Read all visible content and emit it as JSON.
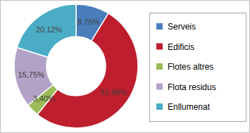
{
  "chart_data": {
    "type": "donut",
    "categories": [
      "Serveis",
      "Edificis",
      "Flotes altres",
      "Flota residus",
      "Enllumenat"
    ],
    "values": [
      8.75,
      51.98,
      3.4,
      15.75,
      20.12
    ],
    "value_labels": [
      "8,75%",
      "51,98%",
      "3,40%",
      "15,75%",
      "20,12%"
    ],
    "colors": [
      "#4a7ebb",
      "#be1e2d",
      "#9bbb59",
      "#b3a2c7",
      "#4bacc6"
    ],
    "data_labels": true,
    "legend": "right"
  }
}
